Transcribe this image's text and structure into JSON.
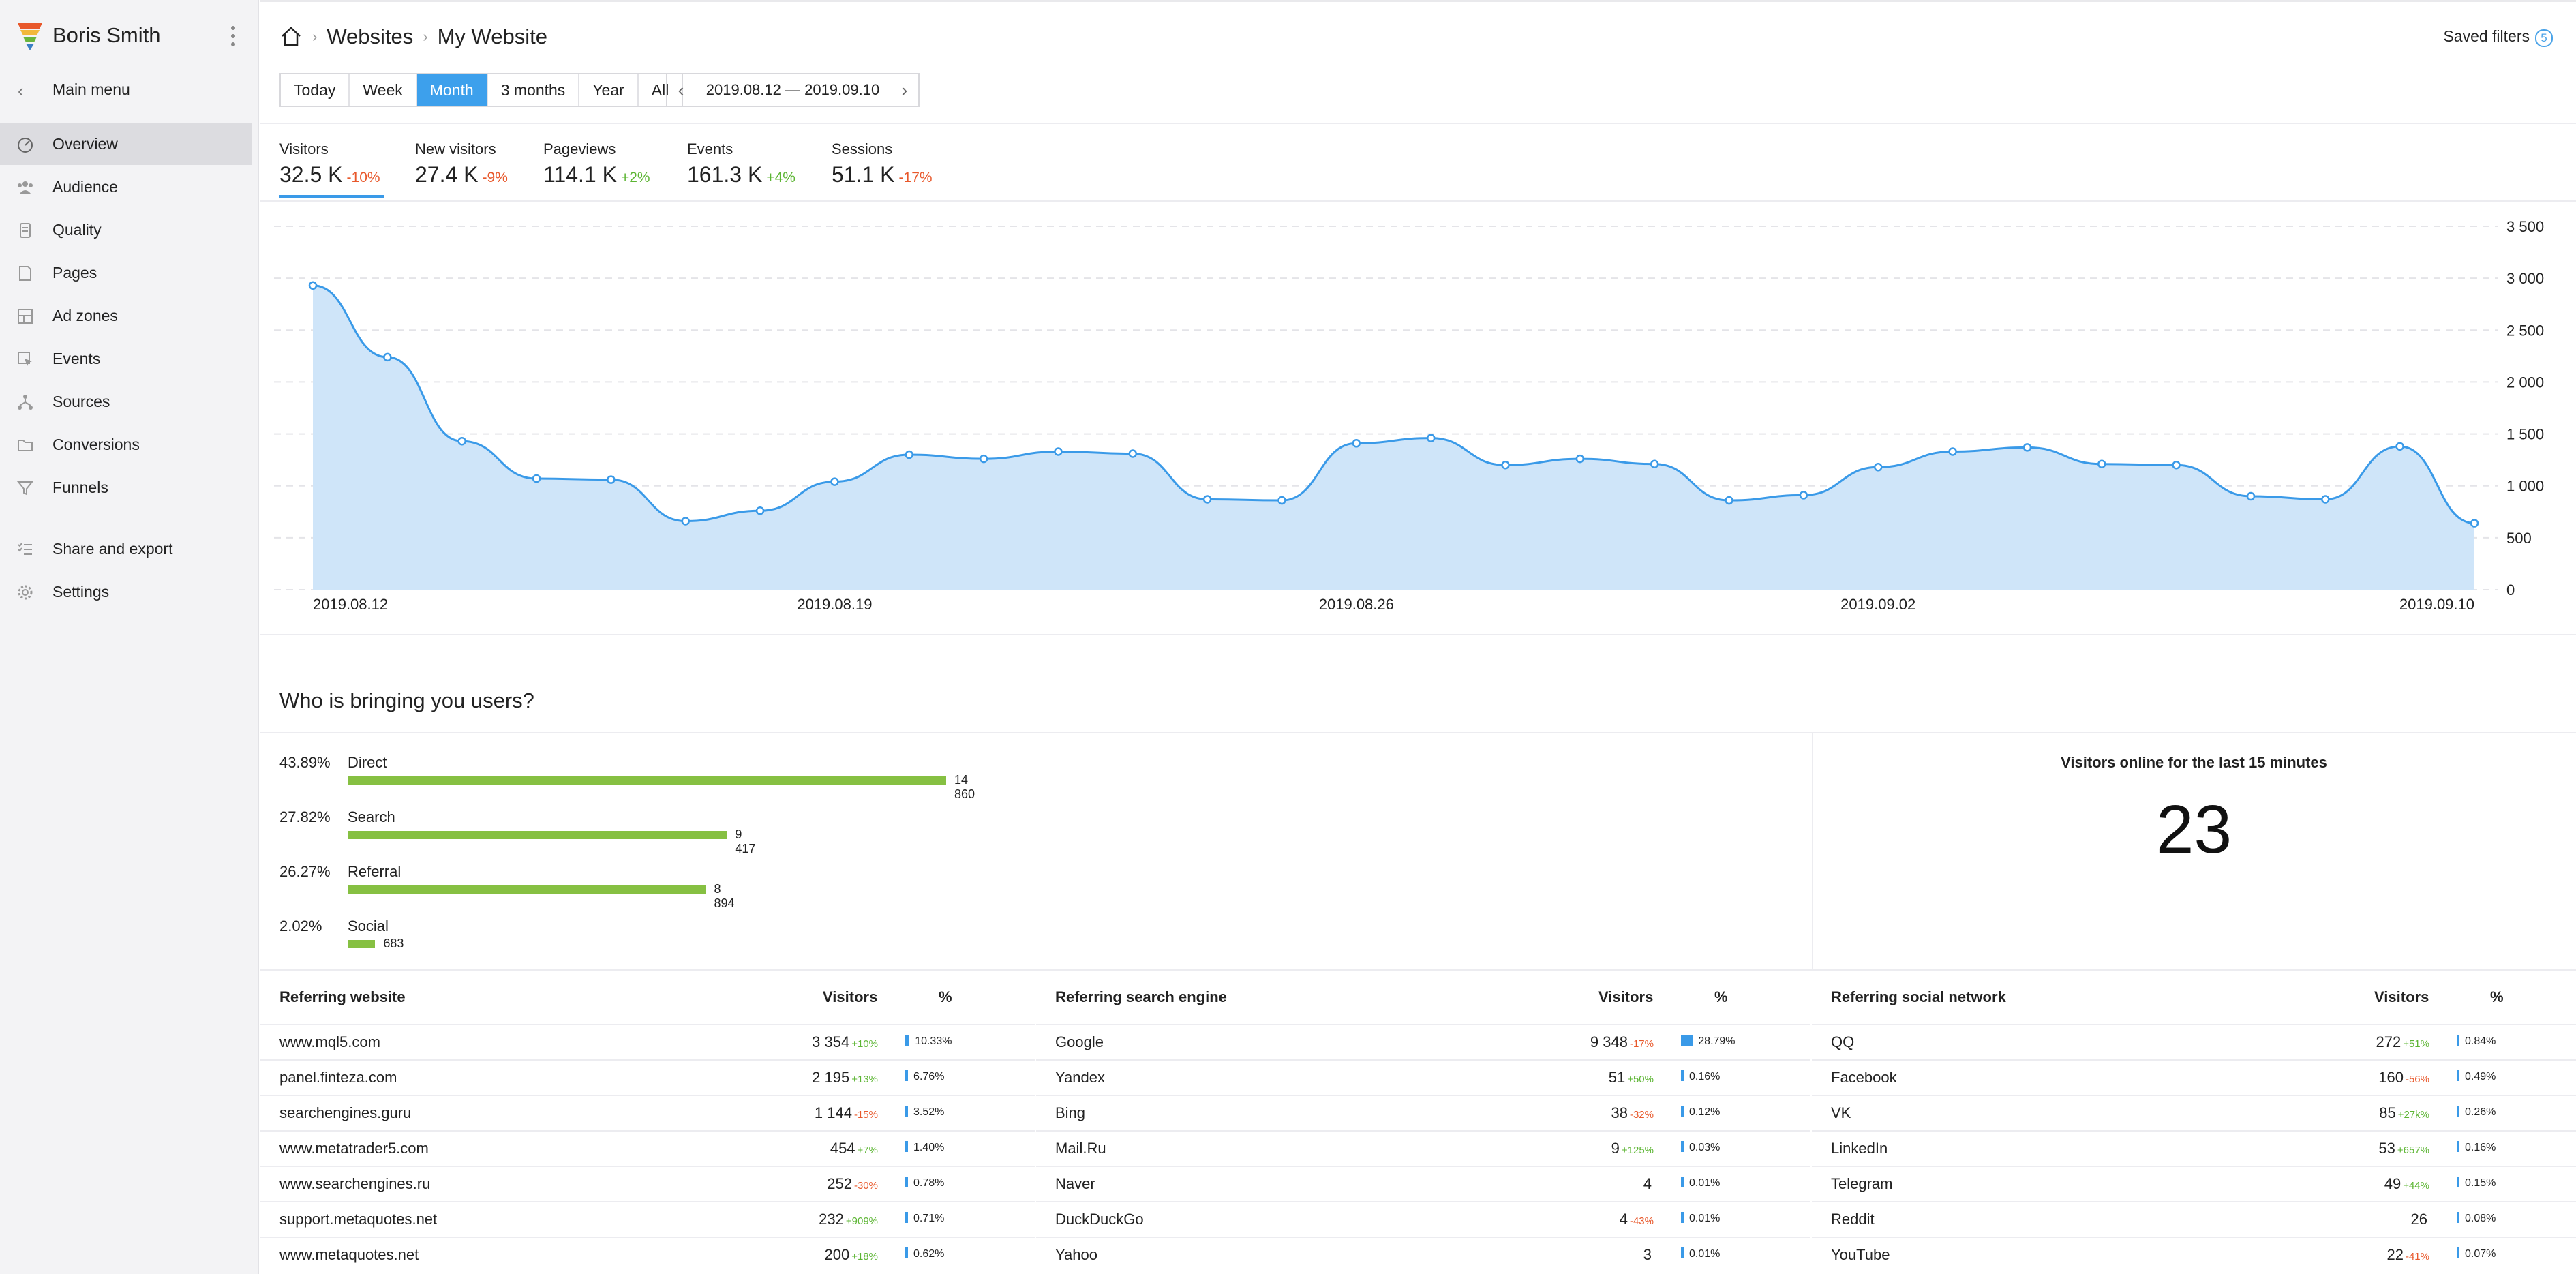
{
  "sidebar": {
    "user_name": "Boris Smith",
    "main_menu_label": "Main menu",
    "items": [
      {
        "label": "Overview",
        "icon": "speedometer-icon",
        "active": true
      },
      {
        "label": "Audience",
        "icon": "users-icon"
      },
      {
        "label": "Quality",
        "icon": "quality-icon"
      },
      {
        "label": "Pages",
        "icon": "page-icon"
      },
      {
        "label": "Ad zones",
        "icon": "layout-icon"
      },
      {
        "label": "Events",
        "icon": "cursor-icon"
      },
      {
        "label": "Sources",
        "icon": "branch-icon"
      },
      {
        "label": "Conversions",
        "icon": "folder-icon"
      },
      {
        "label": "Funnels",
        "icon": "funnel-icon"
      },
      {
        "label": "Share and export",
        "icon": "list-check-icon"
      },
      {
        "label": "Settings",
        "icon": "gear-icon"
      }
    ]
  },
  "header": {
    "breadcrumb_1": "Websites",
    "breadcrumb_2": "My Website",
    "saved_filters_label": "Saved filters",
    "saved_filters_count": "5"
  },
  "periods": {
    "options": [
      "Today",
      "Week",
      "Month",
      "3 months",
      "Year",
      "All"
    ],
    "selected": "Month",
    "date_range": "2019.08.12 — 2019.09.10"
  },
  "metrics": [
    {
      "name": "Visitors",
      "value": "32.5 K",
      "delta": "-10%",
      "trend": "neg"
    },
    {
      "name": "New visitors",
      "value": "27.4 K",
      "delta": "-9%",
      "trend": "neg"
    },
    {
      "name": "Pageviews",
      "value": "114.1 K",
      "delta": "+2%",
      "trend": "pos"
    },
    {
      "name": "Events",
      "value": "161.3 K",
      "delta": "+4%",
      "trend": "pos"
    },
    {
      "name": "Sessions",
      "value": "51.1 K",
      "delta": "-17%",
      "trend": "neg"
    }
  ],
  "chart_data": {
    "type": "area",
    "series": [
      {
        "values": [
          2930,
          2240,
          1430,
          1070,
          1060,
          660,
          760,
          1040,
          1300,
          1260,
          1330,
          1310,
          870,
          860,
          1410,
          1460,
          1200,
          1260,
          1210,
          860,
          910,
          1180,
          1330,
          1370,
          1210,
          1200,
          900,
          870,
          1380,
          640
        ]
      }
    ],
    "x": [
      "2019.08.12",
      "2019.08.13",
      "2019.08.14",
      "2019.08.15",
      "2019.08.16",
      "2019.08.17",
      "2019.08.18",
      "2019.08.19",
      "2019.08.20",
      "2019.08.21",
      "2019.08.22",
      "2019.08.23",
      "2019.08.24",
      "2019.08.25",
      "2019.08.26",
      "2019.08.27",
      "2019.08.28",
      "2019.08.29",
      "2019.08.30",
      "2019.08.31",
      "2019.09.01",
      "2019.09.02",
      "2019.09.03",
      "2019.09.04",
      "2019.09.05",
      "2019.09.06",
      "2019.09.07",
      "2019.09.08",
      "2019.09.09",
      "2019.09.10"
    ],
    "x_tick_labels": [
      "2019.08.12",
      "2019.08.19",
      "2019.08.26",
      "2019.09.02",
      "2019.09.10"
    ],
    "y_tick_labels": [
      "0",
      "500",
      "1 000",
      "1 500",
      "2 000",
      "2 500",
      "3 000",
      "3 500"
    ],
    "ylim": [
      0,
      3500
    ],
    "grid": "horizontal dashed",
    "colors": {
      "line": "#3a9ae8",
      "fill": "#cfe5f9"
    }
  },
  "sources_section": {
    "title": "Who is bringing you users?",
    "items": [
      {
        "pct": "43.89%",
        "name": "Direct",
        "count": "14 860",
        "value": 14860
      },
      {
        "pct": "27.82%",
        "name": "Search",
        "count": "9 417",
        "value": 9417
      },
      {
        "pct": "26.27%",
        "name": "Referral",
        "count": "8 894",
        "value": 8894
      },
      {
        "pct": "2.02%",
        "name": "Social",
        "count": "683",
        "value": 683
      }
    ],
    "bar_color": "#86c042"
  },
  "online": {
    "title": "Visitors online for the last 15 minutes",
    "value": "23"
  },
  "tables": [
    {
      "header": "Referring website",
      "col_visitors": "Visitors",
      "col_pct": "%",
      "rows": [
        {
          "name": "www.mql5.com",
          "visitors": "3 354",
          "delta": "+10%",
          "trend": "pos",
          "pct": "10.33%",
          "share": 10.33
        },
        {
          "name": "panel.finteza.com",
          "visitors": "2 195",
          "delta": "+13%",
          "trend": "pos",
          "pct": "6.76%",
          "share": 6.76
        },
        {
          "name": "searchengines.guru",
          "visitors": "1 144",
          "delta": "-15%",
          "trend": "neg",
          "pct": "3.52%",
          "share": 3.52
        },
        {
          "name": "www.metatrader5.com",
          "visitors": "454",
          "delta": "+7%",
          "trend": "pos",
          "pct": "1.40%",
          "share": 1.4
        },
        {
          "name": "www.searchengines.ru",
          "visitors": "252",
          "delta": "-30%",
          "trend": "neg",
          "pct": "0.78%",
          "share": 0.78
        },
        {
          "name": "support.metaquotes.net",
          "visitors": "232",
          "delta": "+909%",
          "trend": "pos",
          "pct": "0.71%",
          "share": 0.71
        },
        {
          "name": "www.metaquotes.net",
          "visitors": "200",
          "delta": "+18%",
          "trend": "pos",
          "pct": "0.62%",
          "share": 0.62
        }
      ]
    },
    {
      "header": "Referring search engine",
      "col_visitors": "Visitors",
      "col_pct": "%",
      "rows": [
        {
          "name": "Google",
          "visitors": "9 348",
          "delta": "-17%",
          "trend": "neg",
          "pct": "28.79%",
          "share": 28.79
        },
        {
          "name": "Yandex",
          "visitors": "51",
          "delta": "+50%",
          "trend": "pos",
          "pct": "0.16%",
          "share": 0.16
        },
        {
          "name": "Bing",
          "visitors": "38",
          "delta": "-32%",
          "trend": "neg",
          "pct": "0.12%",
          "share": 0.12
        },
        {
          "name": "Mail.Ru",
          "visitors": "9",
          "delta": "+125%",
          "trend": "pos",
          "pct": "0.03%",
          "share": 0.03
        },
        {
          "name": "Naver",
          "visitors": "4",
          "delta": "",
          "trend": "",
          "pct": "0.01%",
          "share": 0.01
        },
        {
          "name": "DuckDuckGo",
          "visitors": "4",
          "delta": "-43%",
          "trend": "neg",
          "pct": "0.01%",
          "share": 0.01
        },
        {
          "name": "Yahoo",
          "visitors": "3",
          "delta": "",
          "trend": "",
          "pct": "0.01%",
          "share": 0.01
        }
      ]
    },
    {
      "header": "Referring social network",
      "col_visitors": "Visitors",
      "col_pct": "%",
      "rows": [
        {
          "name": "QQ",
          "visitors": "272",
          "delta": "+51%",
          "trend": "pos",
          "pct": "0.84%",
          "share": 0.84
        },
        {
          "name": "Facebook",
          "visitors": "160",
          "delta": "-56%",
          "trend": "neg",
          "pct": "0.49%",
          "share": 0.49
        },
        {
          "name": "VK",
          "visitors": "85",
          "delta": "+27k%",
          "trend": "pos",
          "pct": "0.26%",
          "share": 0.26
        },
        {
          "name": "LinkedIn",
          "visitors": "53",
          "delta": "+657%",
          "trend": "pos",
          "pct": "0.16%",
          "share": 0.16
        },
        {
          "name": "Telegram",
          "visitors": "49",
          "delta": "+44%",
          "trend": "pos",
          "pct": "0.15%",
          "share": 0.15
        },
        {
          "name": "Reddit",
          "visitors": "26",
          "delta": "",
          "trend": "",
          "pct": "0.08%",
          "share": 0.08
        },
        {
          "name": "YouTube",
          "visitors": "22",
          "delta": "-41%",
          "trend": "neg",
          "pct": "0.07%",
          "share": 0.07
        }
      ]
    }
  ]
}
